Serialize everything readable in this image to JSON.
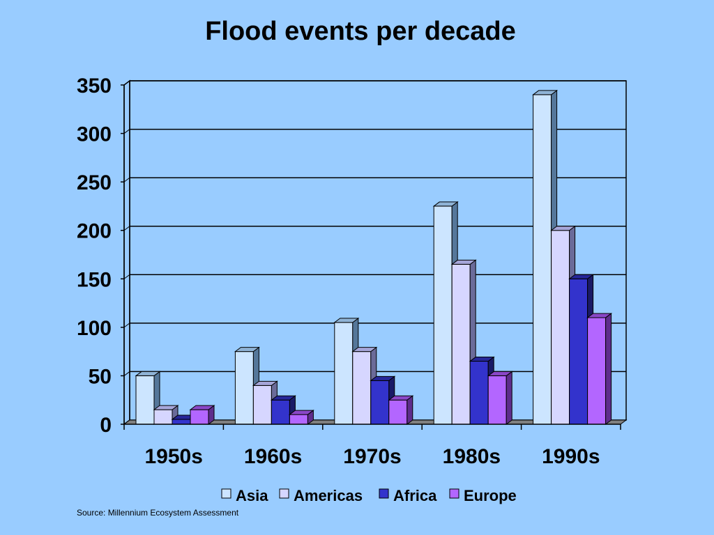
{
  "chart_data": {
    "type": "bar",
    "title": "Flood events per decade",
    "source": "Source: Millennium Ecosystem Assessment",
    "categories": [
      "1950s",
      "1960s",
      "1970s",
      "1980s",
      "1990s"
    ],
    "series": [
      {
        "name": "Asia",
        "values": [
          50,
          75,
          105,
          225,
          340
        ],
        "color": "#cce5ff",
        "side": "#55779a",
        "top": "#8fb3d6"
      },
      {
        "name": "Americas",
        "values": [
          15,
          40,
          75,
          165,
          200
        ],
        "color": "#d6d6ff",
        "side": "#6b6b99",
        "top": "#a6a6d9"
      },
      {
        "name": "Africa",
        "values": [
          5,
          25,
          45,
          65,
          150
        ],
        "color": "#3333cc",
        "side": "#1a1a66",
        "top": "#262699"
      },
      {
        "name": "Europe",
        "values": [
          15,
          10,
          25,
          50,
          110
        ],
        "color": "#b366ff",
        "side": "#5e2d8c",
        "top": "#8a47c7"
      }
    ],
    "yticks": [
      0,
      50,
      100,
      150,
      200,
      250,
      300,
      350
    ],
    "ylim": [
      0,
      350
    ],
    "grid": true,
    "legend_position": "bottom"
  }
}
